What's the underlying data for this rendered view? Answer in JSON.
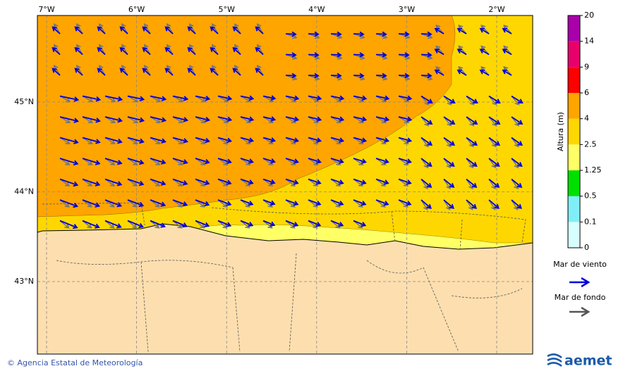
{
  "map": {
    "lon_labels": [
      "7°W",
      "6°W",
      "5°W",
      "4°W",
      "3°W",
      "2°W"
    ],
    "lat_labels": [
      "45°N",
      "44°N",
      "43°N"
    ],
    "colorbar": {
      "label": "Altura (m)",
      "levels": [
        0,
        0.1,
        0.5,
        1.25,
        2.5,
        4,
        6,
        9,
        14,
        20
      ],
      "colors": [
        "#d8ffff",
        "#80eef8",
        "#00e000",
        "#ffff66",
        "#ffd700",
        "#ffa500",
        "#ff0000",
        "#e8006a",
        "#aa00aa"
      ]
    },
    "legend": {
      "wind": "Mar de viento",
      "swell": "Mar de fondo"
    },
    "footer": {
      "credit": "© Agencia Estatal de Meteorología",
      "logo": "aemet"
    }
  }
}
